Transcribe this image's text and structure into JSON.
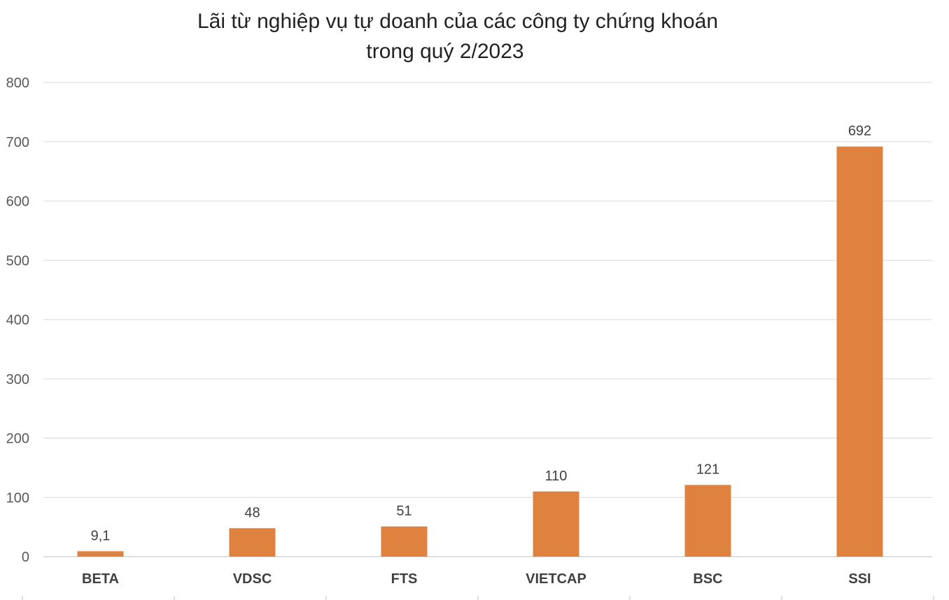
{
  "chart_data": {
    "type": "bar",
    "title_lines": [
      "Lãi từ nghiệp vụ tự doanh của các công ty chứng khoán",
      "trong quý 2/2023"
    ],
    "categories": [
      "BETA",
      "VDSC",
      "FTS",
      "VIETCAP",
      "BSC",
      "SSI"
    ],
    "values": [
      9.1,
      48,
      51,
      110,
      121,
      692
    ],
    "value_labels": [
      "9,1",
      "48",
      "51",
      "110",
      "121",
      "692"
    ],
    "ylim": [
      0,
      800
    ],
    "yticks": [
      0,
      100,
      200,
      300,
      400,
      500,
      600,
      700,
      800
    ],
    "ytick_labels": [
      "0",
      "100",
      "200",
      "300",
      "400",
      "500",
      "600",
      "700",
      "800"
    ],
    "grid": true,
    "legend": "none",
    "bar_color": "#e0823f"
  }
}
